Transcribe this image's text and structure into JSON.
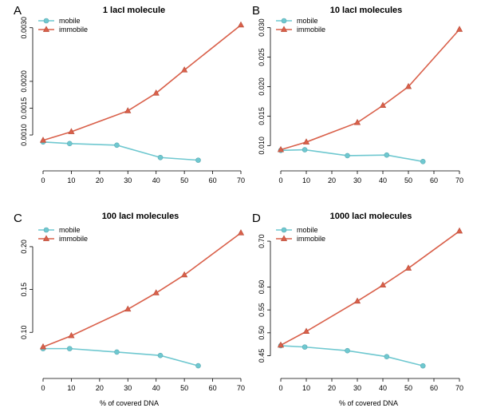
{
  "figure": {
    "xlabel": "% of covered DNA",
    "colors": {
      "mobile": "#6fc8d0",
      "immobile": "#d9604a",
      "axis": "#000000"
    }
  },
  "chart_data": [
    {
      "type": "line",
      "panel": "A",
      "title": "1 lacI molecule",
      "xlabel": "",
      "ylabel": "",
      "xlim": [
        0,
        70
      ],
      "ylim": [
        0.00045,
        0.0031
      ],
      "xticks": [
        "0",
        "10",
        "20",
        "30",
        "40",
        "50",
        "60",
        "70"
      ],
      "yticks": [
        {
          "value": 0.001,
          "label": "0.0010"
        },
        {
          "value": 0.0015,
          "label": "0.0015"
        },
        {
          "value": 0.002,
          "label": "0.0020"
        },
        {
          "value": 0.003,
          "label": "0.0030"
        }
      ],
      "legend": {
        "position": "top-left",
        "entries": [
          "mobile",
          "immobile"
        ]
      },
      "series": [
        {
          "name": "mobile",
          "marker": "circle",
          "x": [
            0,
            9.4,
            26.1,
            41.5,
            54.9
          ],
          "y": [
            0.00087,
            0.00084,
            0.00081,
            0.00058,
            0.00053
          ]
        },
        {
          "name": "immobile",
          "marker": "triangle",
          "x": [
            0,
            10,
            30,
            40,
            50,
            70
          ],
          "y": [
            0.0009,
            0.00106,
            0.00145,
            0.00178,
            0.00221,
            0.00305
          ]
        }
      ]
    },
    {
      "type": "line",
      "panel": "B",
      "title": "10 lacI molecules",
      "xlabel": "",
      "ylabel": "",
      "xlim": [
        0,
        70
      ],
      "ylim": [
        0.0068,
        0.0309
      ],
      "xticks": [
        "0",
        "10",
        "20",
        "30",
        "40",
        "50",
        "60",
        "70"
      ],
      "yticks": [
        {
          "value": 0.01,
          "label": "0.010"
        },
        {
          "value": 0.015,
          "label": "0.015"
        },
        {
          "value": 0.02,
          "label": "0.020"
        },
        {
          "value": 0.025,
          "label": "0.025"
        },
        {
          "value": 0.03,
          "label": "0.030"
        }
      ],
      "legend": {
        "position": "top-left",
        "entries": [
          "mobile",
          "immobile"
        ]
      },
      "series": [
        {
          "name": "mobile",
          "marker": "circle",
          "x": [
            0,
            9.4,
            26.1,
            41.5,
            55.7
          ],
          "y": [
            0.0092,
            0.0093,
            0.0083,
            0.0084,
            0.0073
          ]
        },
        {
          "name": "immobile",
          "marker": "triangle",
          "x": [
            0,
            10,
            30,
            40,
            50,
            70
          ],
          "y": [
            0.0093,
            0.0106,
            0.0139,
            0.0168,
            0.02,
            0.0297
          ]
        }
      ]
    },
    {
      "type": "line",
      "panel": "C",
      "title": "100 lacI molecules",
      "xlabel": "% of covered DNA",
      "ylabel": "",
      "xlim": [
        0,
        70
      ],
      "ylim": [
        0.0555,
        0.2195
      ],
      "xticks": [
        "0",
        "10",
        "20",
        "30",
        "40",
        "50",
        "60",
        "70"
      ],
      "yticks": [
        {
          "value": 0.1,
          "label": "0.10"
        },
        {
          "value": 0.15,
          "label": "0.15"
        },
        {
          "value": 0.2,
          "label": "0.20"
        }
      ],
      "legend": {
        "position": "top-left",
        "entries": [
          "mobile",
          "immobile"
        ]
      },
      "series": [
        {
          "name": "mobile",
          "marker": "circle",
          "x": [
            0,
            9.4,
            26.1,
            41.5,
            54.9
          ],
          "y": [
            0.081,
            0.081,
            0.077,
            0.073,
            0.061
          ]
        },
        {
          "name": "immobile",
          "marker": "triangle",
          "x": [
            0,
            10,
            30,
            40,
            50,
            70
          ],
          "y": [
            0.083,
            0.096,
            0.127,
            0.146,
            0.167,
            0.216
          ]
        }
      ]
    },
    {
      "type": "line",
      "panel": "D",
      "title": "1000 lacI molecules",
      "xlabel": "% of covered DNA",
      "ylabel": "",
      "xlim": [
        0,
        70
      ],
      "ylim": [
        0.4178,
        0.7245
      ],
      "xticks": [
        "0",
        "10",
        "20",
        "30",
        "40",
        "50",
        "60",
        "70"
      ],
      "yticks": [
        {
          "value": 0.45,
          "label": "0.45"
        },
        {
          "value": 0.5,
          "label": "0.50"
        },
        {
          "value": 0.55,
          "label": "0.55"
        },
        {
          "value": 0.6,
          "label": "0.60"
        },
        {
          "value": 0.7,
          "label": "0.70"
        }
      ],
      "legend": {
        "position": "top-left",
        "entries": [
          "mobile",
          "immobile"
        ]
      },
      "series": [
        {
          "name": "mobile",
          "marker": "circle",
          "x": [
            0,
            9.4,
            26.1,
            41.5,
            55.7
          ],
          "y": [
            0.472,
            0.469,
            0.461,
            0.448,
            0.428
          ]
        },
        {
          "name": "immobile",
          "marker": "triangle",
          "x": [
            0,
            10,
            30,
            40,
            50,
            70
          ],
          "y": [
            0.473,
            0.503,
            0.569,
            0.604,
            0.641,
            0.722
          ]
        }
      ]
    }
  ]
}
